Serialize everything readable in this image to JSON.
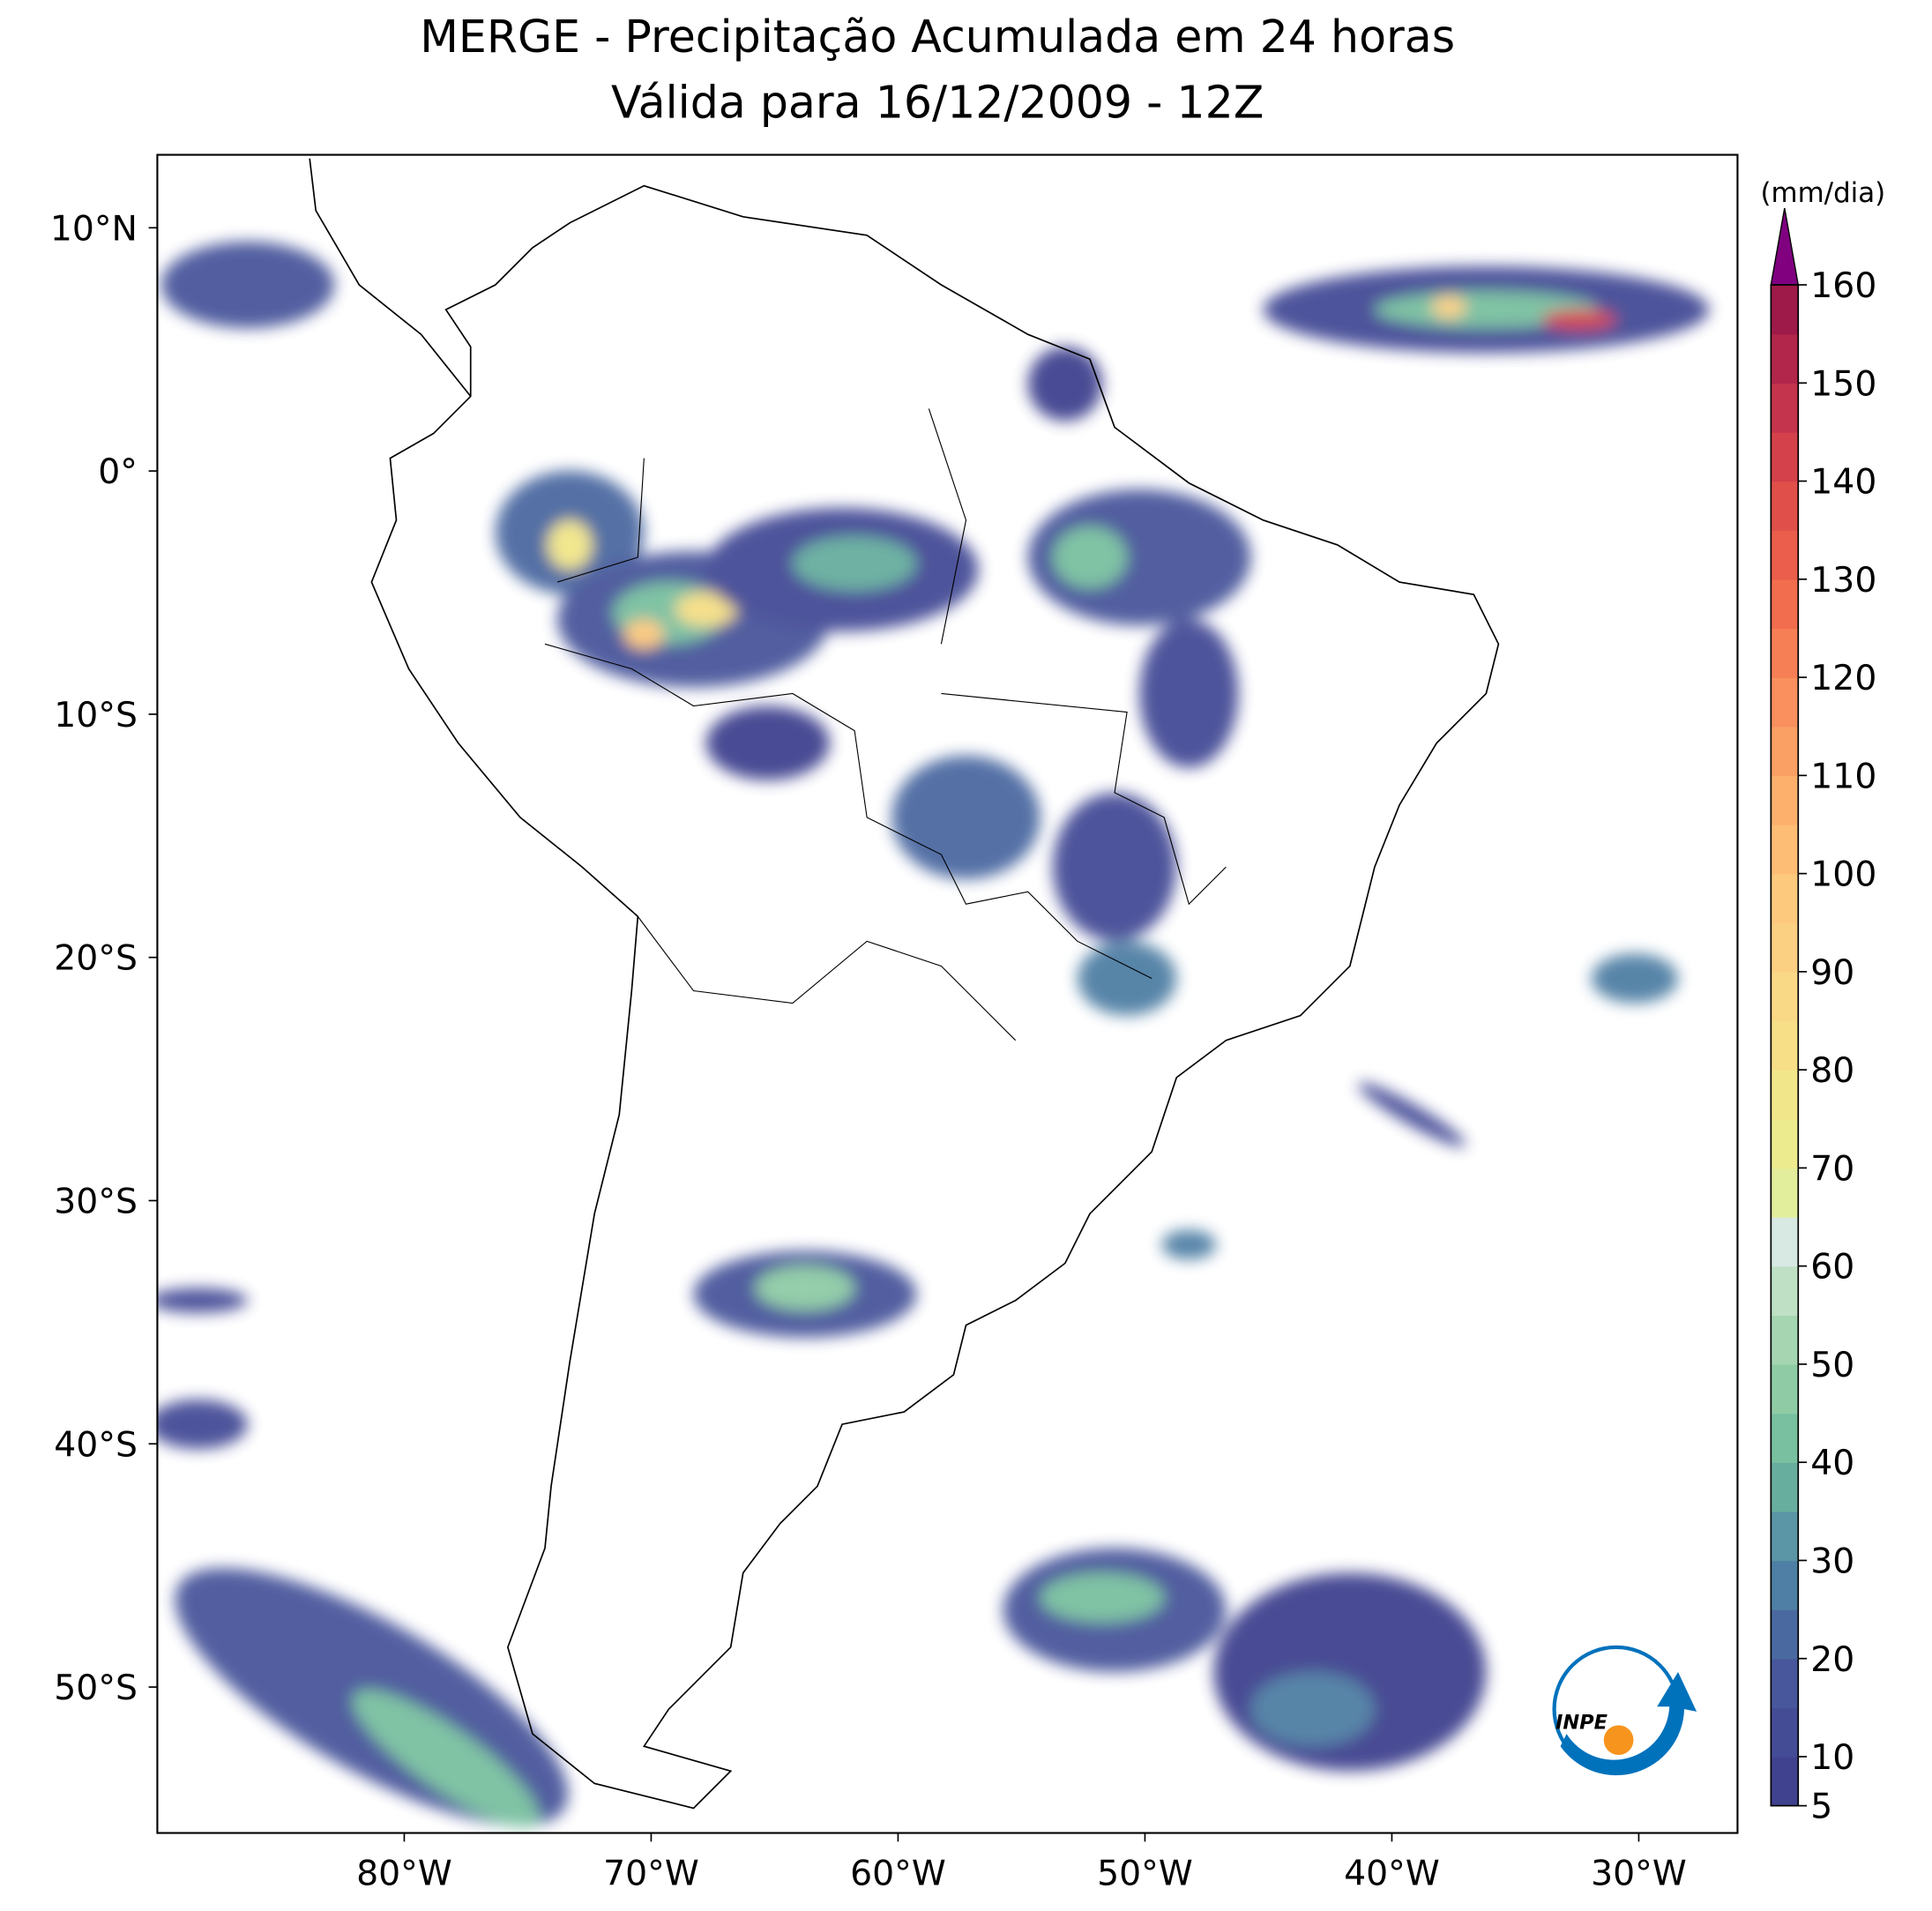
{
  "chart_data": {
    "type": "map",
    "title": "MERGE - Precipitação Acumulada em 24 horas",
    "subtitle": "Válida para 16/12/2009 - 12Z",
    "xlim": [
      -90,
      -26
    ],
    "ylim": [
      -56,
      13
    ],
    "xticks": [
      {
        "value": -80,
        "label": "80°W"
      },
      {
        "value": -70,
        "label": "70°W"
      },
      {
        "value": -60,
        "label": "60°W"
      },
      {
        "value": -50,
        "label": "50°W"
      },
      {
        "value": -40,
        "label": "40°W"
      },
      {
        "value": -30,
        "label": "30°W"
      }
    ],
    "yticks": [
      {
        "value": 10,
        "label": "10°N"
      },
      {
        "value": 0,
        "label": "0°"
      },
      {
        "value": -10,
        "label": "10°S"
      },
      {
        "value": -20,
        "label": "20°S"
      },
      {
        "value": -30,
        "label": "30°S"
      },
      {
        "value": -40,
        "label": "40°S"
      },
      {
        "value": -50,
        "label": "50°S"
      }
    ],
    "logo": "INPE",
    "colorbar": {
      "unit": "(mm/dia)",
      "ylim": [
        5,
        160
      ],
      "yticks": [
        5,
        10,
        20,
        30,
        40,
        50,
        60,
        70,
        80,
        90,
        100,
        110,
        120,
        130,
        140,
        150,
        160
      ],
      "levels": [
        5,
        10,
        15,
        20,
        25,
        30,
        35,
        40,
        45,
        50,
        55,
        60,
        65,
        70,
        75,
        80,
        85,
        90,
        95,
        100,
        105,
        110,
        115,
        120,
        125,
        130,
        135,
        140,
        145,
        150,
        155,
        160
      ],
      "colors": [
        "#40428f",
        "#444c96",
        "#48579b",
        "#4b69a1",
        "#4f7fa4",
        "#5a96a5",
        "#68ae9f",
        "#79c0a0",
        "#8fcca6",
        "#a5d6b1",
        "#bfe0c5",
        "#d7e9e2",
        "#e3ee9c",
        "#eceb8e",
        "#f2e68a",
        "#f6df86",
        "#f9d886",
        "#fbd083",
        "#fdc97d",
        "#fdbd74",
        "#fcb06c",
        "#fba064",
        "#f9905d",
        "#f67f55",
        "#f16d4e",
        "#ea5e4b",
        "#e04f4a",
        "#d4414b",
        "#c4344c",
        "#b2264b",
        "#9e1a48"
      ],
      "extend_color": "#800080"
    }
  }
}
